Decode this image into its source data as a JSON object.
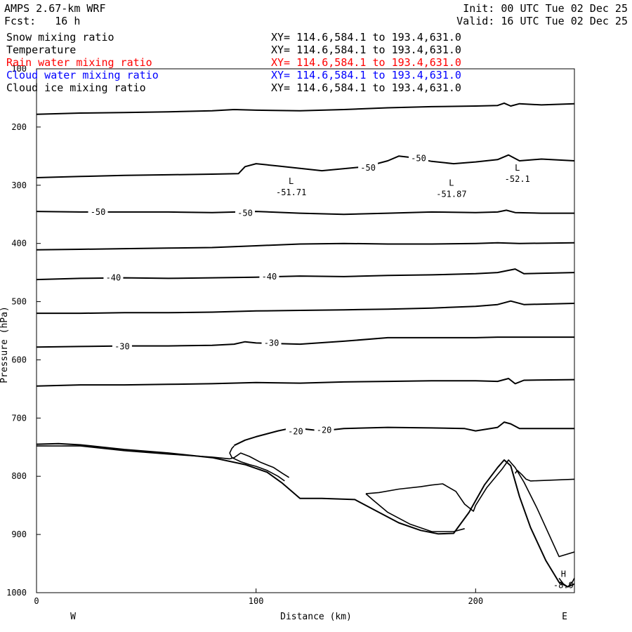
{
  "header": {
    "model": "AMPS 2.67-km WRF",
    "init": "Init: 00 UTC Tue 02 Dec 25",
    "forecast": "Fcst:   16 h",
    "valid": "Valid: 16 UTC Tue 02 Dec 25"
  },
  "variables": [
    {
      "name": "Snow mixing ratio",
      "xy": "XY= 114.6,584.1 to 193.4,631.0",
      "color": "#000000"
    },
    {
      "name": "Temperature",
      "xy": "XY= 114.6,584.1 to 193.4,631.0",
      "color": "#000000"
    },
    {
      "name": "Rain water mixing ratio",
      "xy": "XY= 114.6,584.1 to 193.4,631.0",
      "color": "#ff0000"
    },
    {
      "name": "Cloud water mixing ratio",
      "xy": "XY= 114.6,584.1 to 193.4,631.0",
      "color": "#0000ff"
    },
    {
      "name": "Cloud ice mixing ratio",
      "xy": "XY= 114.6,584.1 to 193.4,631.0",
      "color": "#000000"
    }
  ],
  "chart_data": {
    "type": "line",
    "xlabel": "Distance (km)",
    "ylabel": "Pressure (hPa)",
    "xlim": [
      0,
      245
    ],
    "ylim": [
      1000,
      100
    ],
    "x_ticks": [
      0,
      100,
      200
    ],
    "y_ticks": [
      100,
      200,
      300,
      400,
      500,
      600,
      700,
      800,
      900,
      1000
    ],
    "x_end_labels": {
      "left": "W",
      "right": "E"
    },
    "grid": false,
    "isotherms": [
      {
        "x": [
          0,
          20,
          40,
          60,
          80,
          90,
          100,
          120,
          140,
          160,
          180,
          200,
          210,
          213,
          216,
          220,
          230,
          245
        ],
        "y": [
          178,
          176,
          175,
          174,
          172,
          170,
          171,
          172,
          170,
          167,
          165,
          164,
          163,
          159,
          164,
          160,
          162,
          160
        ]
      },
      {
        "x": [
          0,
          20,
          40,
          60,
          80,
          92,
          95,
          100,
          110,
          130,
          150,
          160,
          165,
          170,
          180,
          190,
          200,
          210,
          215,
          220,
          230,
          245
        ],
        "y": [
          287,
          285,
          283,
          282,
          281,
          280,
          268,
          263,
          267,
          275,
          268,
          258,
          250,
          252,
          259,
          263,
          260,
          256,
          248,
          258,
          255,
          258
        ]
      },
      {
        "x": [
          0,
          20,
          40,
          60,
          80,
          100,
          120,
          140,
          160,
          180,
          200,
          210,
          214,
          218,
          230,
          245
        ],
        "y": [
          345,
          346,
          346,
          346,
          347,
          345,
          348,
          350,
          348,
          346,
          347,
          346,
          343,
          347,
          348,
          348
        ]
      },
      {
        "x": [
          0,
          20,
          40,
          60,
          80,
          100,
          120,
          140,
          160,
          180,
          200,
          210,
          220,
          245
        ],
        "y": [
          411,
          410,
          409,
          408,
          407,
          404,
          401,
          400,
          401,
          401,
          400,
          399,
          400,
          399
        ]
      },
      {
        "x": [
          0,
          20,
          40,
          60,
          80,
          100,
          120,
          140,
          160,
          180,
          200,
          210,
          218,
          222,
          245
        ],
        "y": [
          462,
          460,
          459,
          460,
          459,
          458,
          456,
          457,
          455,
          454,
          452,
          450,
          444,
          452,
          450
        ]
      },
      {
        "x": [
          0,
          20,
          40,
          60,
          80,
          100,
          120,
          140,
          160,
          180,
          200,
          210,
          216,
          222,
          245
        ],
        "y": [
          520,
          520,
          519,
          519,
          518,
          516,
          515,
          514,
          513,
          511,
          508,
          505,
          499,
          505,
          503
        ]
      },
      {
        "x": [
          0,
          20,
          40,
          60,
          80,
          90,
          95,
          100,
          120,
          140,
          160,
          180,
          200,
          210,
          245
        ],
        "y": [
          578,
          577,
          576,
          576,
          575,
          573,
          569,
          571,
          573,
          568,
          562,
          562,
          562,
          561,
          561
        ]
      },
      {
        "x": [
          0,
          20,
          40,
          60,
          80,
          100,
          120,
          140,
          160,
          180,
          200,
          210,
          215,
          218,
          222,
          245
        ],
        "y": [
          645,
          643,
          643,
          642,
          641,
          639,
          640,
          638,
          637,
          636,
          636,
          637,
          632,
          641,
          635,
          634
        ]
      },
      {
        "x": [
          90,
          95,
          100,
          110,
          115,
          120,
          130,
          140,
          160,
          180,
          195,
          200,
          210,
          213,
          216,
          220,
          230,
          245
        ],
        "y": [
          747,
          738,
          732,
          722,
          718,
          718,
          722,
          718,
          716,
          717,
          718,
          722,
          716,
          707,
          710,
          718,
          718,
          718
        ]
      }
    ],
    "contour_labels": [
      {
        "text": "-50",
        "x": 151,
        "y": 270
      },
      {
        "text": "-50",
        "x": 174,
        "y": 254
      },
      {
        "text": "-50",
        "x": 28,
        "y": 346
      },
      {
        "text": "-50",
        "x": 95,
        "y": 348
      },
      {
        "text": "-40",
        "x": 35,
        "y": 459
      },
      {
        "text": "-40",
        "x": 106,
        "y": 457
      },
      {
        "text": "-30",
        "x": 39,
        "y": 577
      },
      {
        "text": "-30",
        "x": 107,
        "y": 571
      },
      {
        "text": "-20",
        "x": 118,
        "y": 723
      },
      {
        "text": "-20",
        "x": 131,
        "y": 721
      }
    ],
    "extrema": [
      {
        "kind": "L",
        "value": "-51.71",
        "x": 116,
        "y": 310
      },
      {
        "kind": "L",
        "value": "-51.87",
        "x": 189,
        "y": 313
      },
      {
        "kind": "L",
        "value": "-52.1",
        "x": 219,
        "y": 287
      },
      {
        "kind": "H",
        "value": "-8.9",
        "x": 240,
        "y": 985
      }
    ],
    "terrain": {
      "x": [
        0,
        10,
        20,
        40,
        60,
        80,
        95,
        105,
        112,
        120,
        130,
        145,
        155,
        165,
        175,
        183,
        190,
        197,
        204,
        210,
        213,
        216,
        220,
        225,
        232,
        238,
        242,
        245
      ],
      "y": [
        745,
        744,
        746,
        754,
        760,
        768,
        780,
        793,
        812,
        838,
        838,
        840,
        860,
        880,
        893,
        899,
        898,
        862,
        815,
        785,
        772,
        782,
        835,
        888,
        945,
        982,
        990,
        985
      ]
    },
    "cloud_outlines": [
      {
        "x": [
          0,
          20,
          40,
          60,
          80,
          88,
          90,
          93,
          97,
          102,
          108,
          112,
          115
        ],
        "y": [
          748,
          748,
          756,
          762,
          767,
          770,
          768,
          760,
          766,
          776,
          785,
          795,
          802
        ]
      },
      {
        "x": [
          90,
          89,
          88,
          89,
          93,
          97,
          100,
          105,
          110,
          113
        ],
        "y": [
          748,
          752,
          760,
          768,
          775,
          780,
          783,
          790,
          800,
          808
        ]
      },
      {
        "x": [
          150,
          156,
          165,
          175,
          180,
          185,
          191,
          195,
          199,
          200,
          205,
          212,
          215,
          218,
          222,
          228,
          238,
          245
        ],
        "y": [
          830,
          828,
          822,
          818,
          815,
          813,
          826,
          848,
          860,
          850,
          820,
          788,
          772,
          785,
          810,
          855,
          938,
          930
        ]
      },
      {
        "x": [
          150,
          153,
          160,
          170,
          180,
          190,
          195
        ],
        "y": [
          830,
          840,
          862,
          882,
          895,
          895,
          890
        ]
      },
      {
        "x": [
          218,
          219,
          221,
          223,
          225,
          245
        ],
        "y": [
          795,
          790,
          797,
          805,
          808,
          805
        ]
      },
      {
        "x": [
          238,
          240,
          242,
          244,
          245
        ],
        "y": [
          975,
          985,
          990,
          982,
          975
        ]
      }
    ]
  }
}
